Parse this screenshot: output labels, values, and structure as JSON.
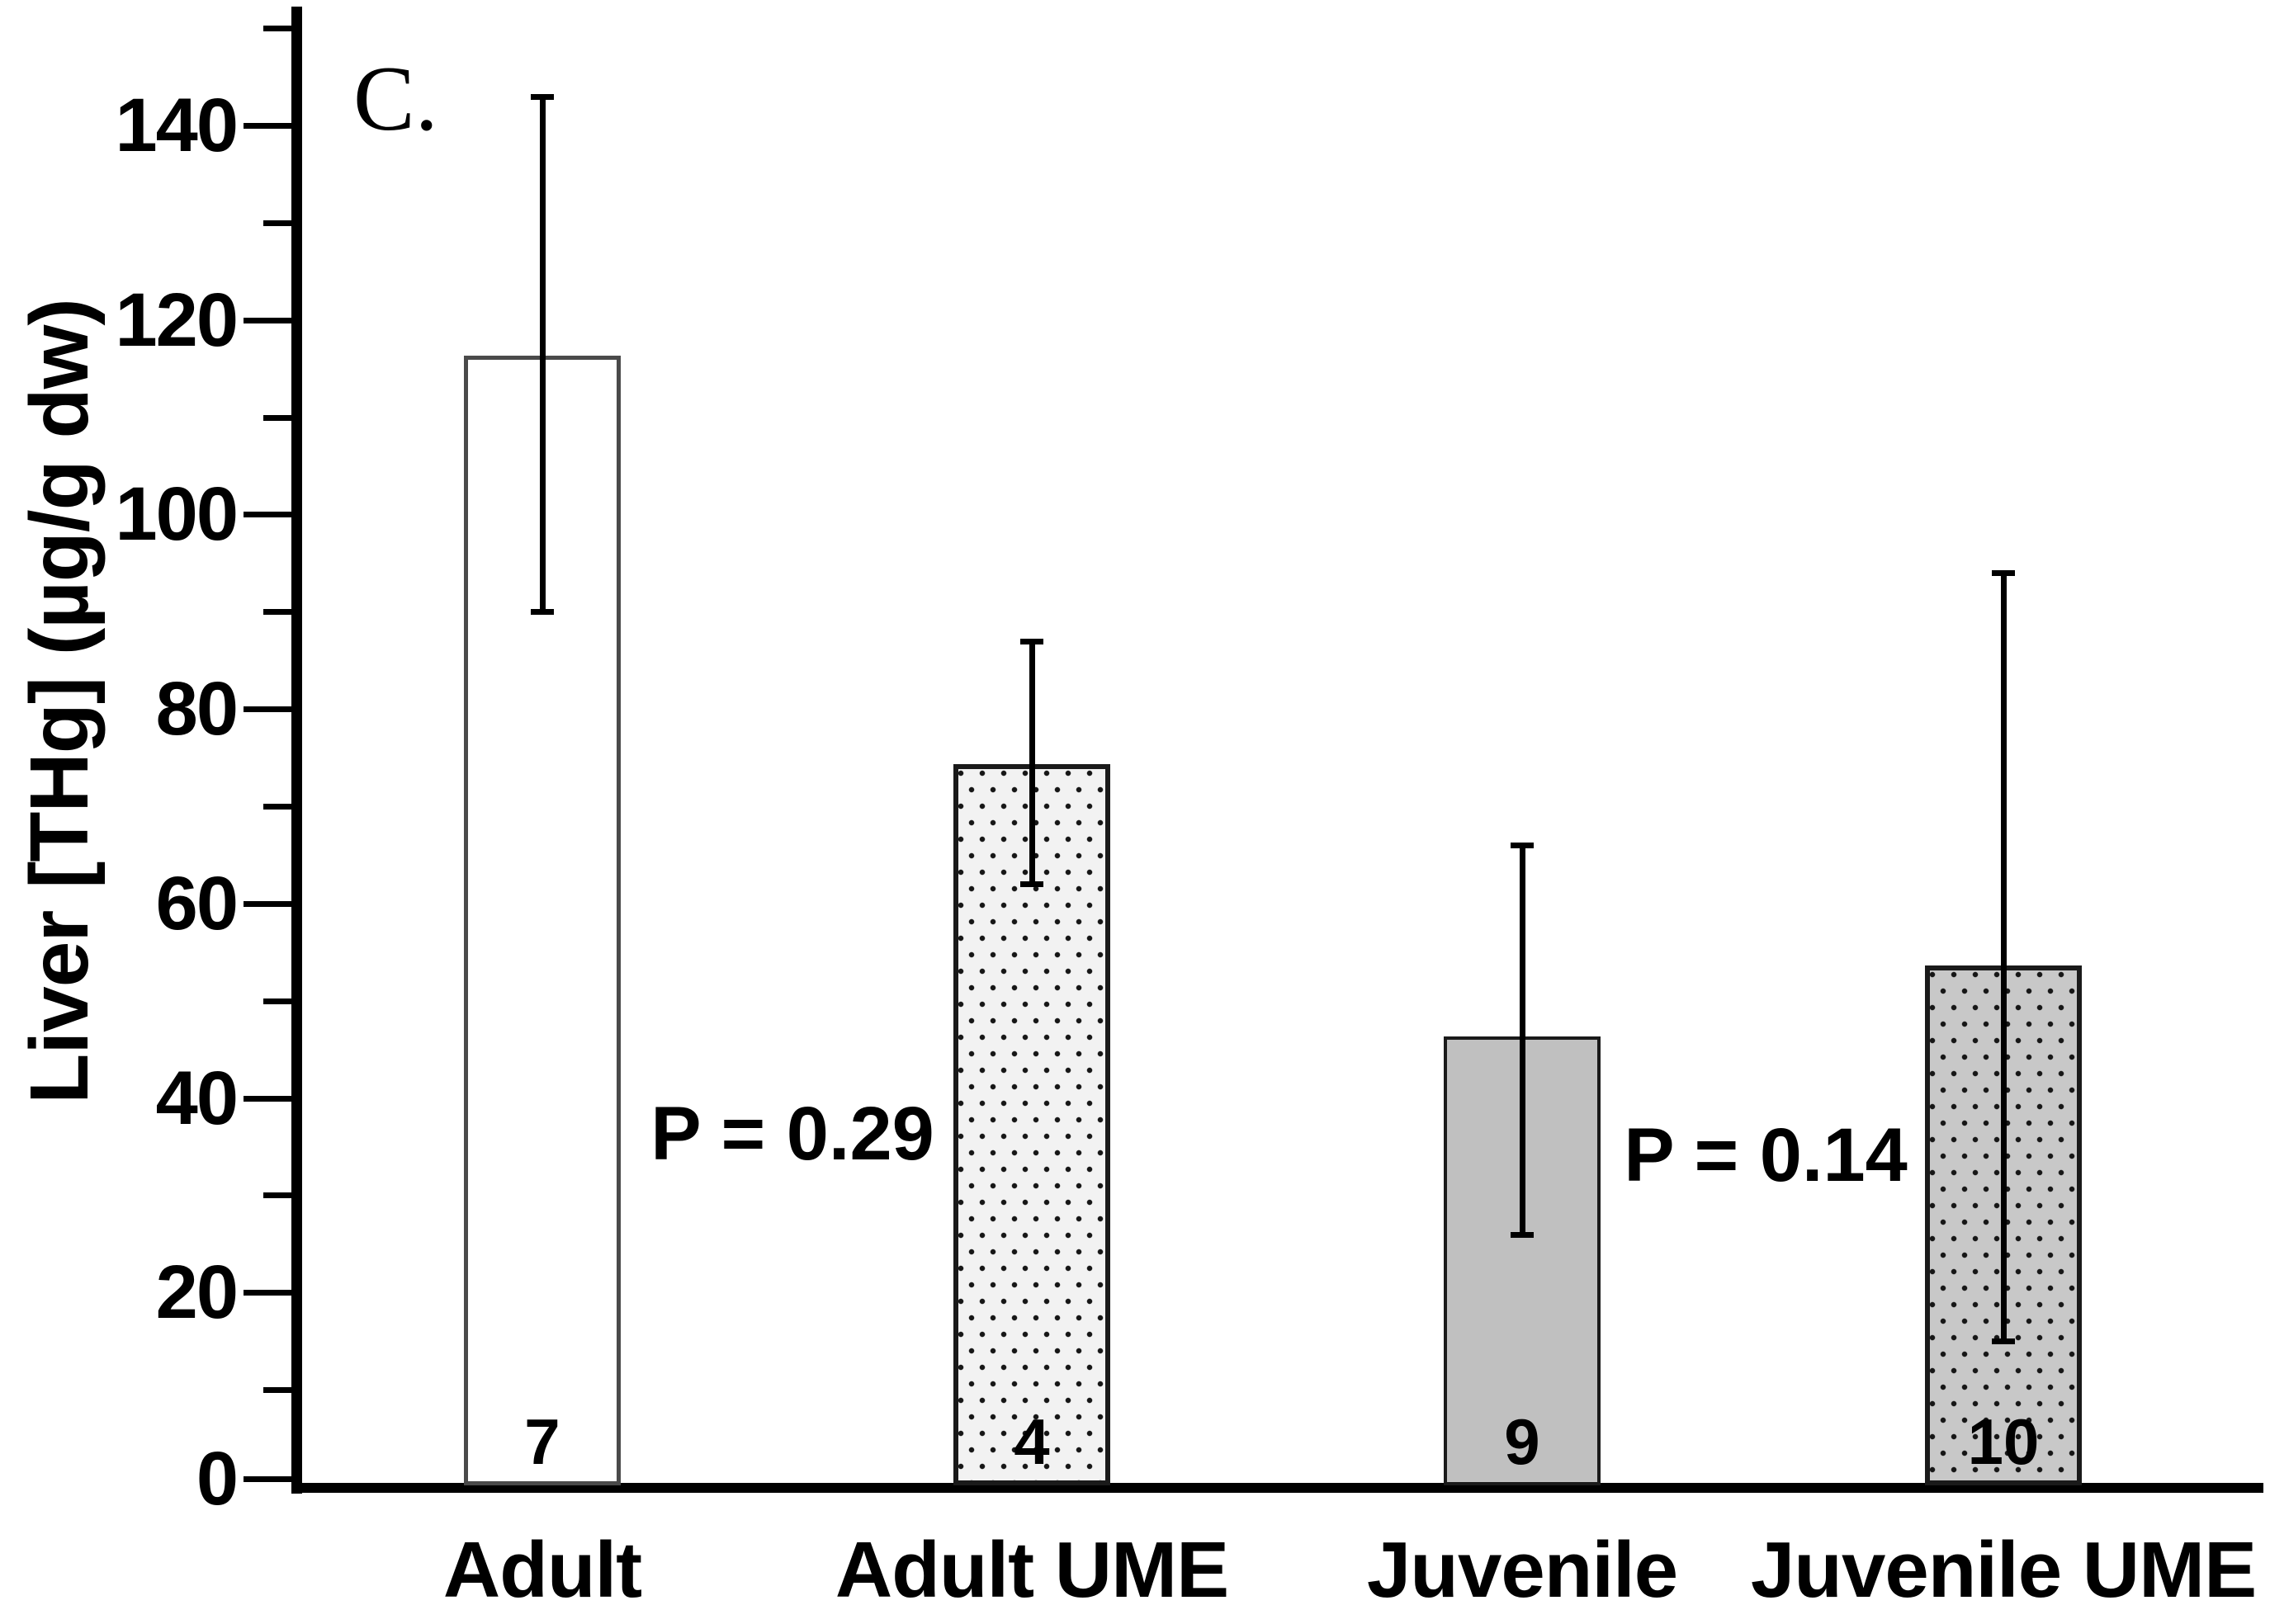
{
  "chart_data": {
    "type": "bar",
    "panel_label": "C.",
    "title": "",
    "xlabel": "",
    "ylabel": "Liver [THg] (µg/g dw)",
    "ylim": [
      0,
      152
    ],
    "yticks": [
      0,
      20,
      40,
      60,
      80,
      100,
      120,
      140
    ],
    "ytick_minor": [
      10,
      30,
      50,
      70,
      90,
      110,
      130,
      150
    ],
    "grid": false,
    "legend": "none",
    "categories": [
      "Adult",
      "Adult UME",
      "Juvenile",
      "Juvenile UME"
    ],
    "values": [
      116.3,
      74.3,
      46.3,
      53.6
    ],
    "error_low": [
      90,
      62,
      26,
      15
    ],
    "error_high": [
      143,
      87,
      66,
      94
    ],
    "n_values": [
      "7",
      "4",
      "9",
      "10"
    ],
    "annotations": [
      {
        "text": "P = 0.29",
        "between": [
          0,
          1
        ]
      },
      {
        "text": "P = 0.14",
        "between": [
          2,
          3
        ]
      }
    ],
    "bar_styles": [
      {
        "name": "white-open",
        "fill": "#ffffff",
        "pattern": "none",
        "border": "#4a4a4a",
        "border_px": 5
      },
      {
        "name": "light-dotted",
        "fill": "#f2f2f2",
        "pattern": "dots",
        "border": "#1a1a1a",
        "border_px": 6
      },
      {
        "name": "solid-gray",
        "fill": "#c0c0c0",
        "pattern": "none",
        "border": "#1a1a1a",
        "border_px": 4
      },
      {
        "name": "gray-dotted",
        "fill": "#c8c8c8",
        "pattern": "dots",
        "border": "#1a1a1a",
        "border_px": 6
      }
    ],
    "colors": {
      "axis": "#000000",
      "text": "#000000",
      "dot_pattern": "#161616",
      "background": "#ffffff"
    }
  }
}
